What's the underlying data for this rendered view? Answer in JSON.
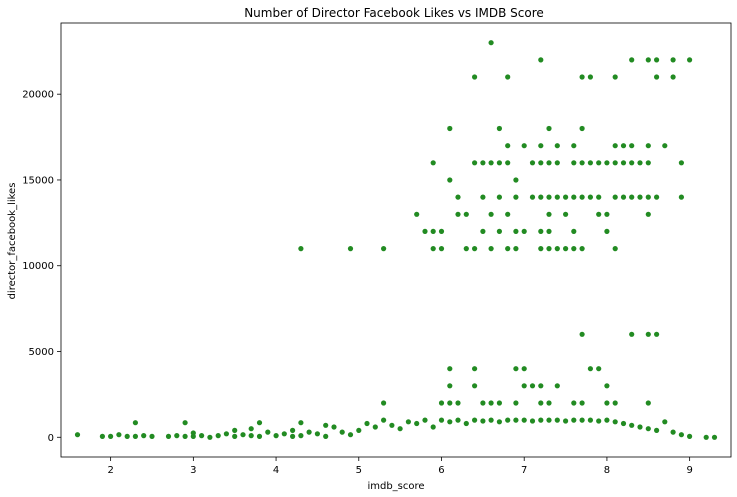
{
  "chart_data": {
    "type": "scatter",
    "title": "Number of Director Facebook Likes vs IMDB Score",
    "xlabel": "imdb_score",
    "ylabel": "director_facebook_likes",
    "xlim": [
      1.4,
      9.5
    ],
    "ylim": [
      -1150,
      24150
    ],
    "xticks": [
      2,
      3,
      4,
      5,
      6,
      7,
      8,
      9
    ],
    "yticks": [
      0,
      5000,
      10000,
      15000,
      20000
    ],
    "grid": false,
    "legend": "none",
    "color": "#228B22",
    "points": [
      [
        1.6,
        150
      ],
      [
        1.9,
        50
      ],
      [
        2.0,
        50
      ],
      [
        2.1,
        150
      ],
      [
        2.2,
        50
      ],
      [
        2.3,
        850
      ],
      [
        2.3,
        50
      ],
      [
        2.4,
        100
      ],
      [
        2.5,
        50
      ],
      [
        2.7,
        50
      ],
      [
        2.8,
        100
      ],
      [
        2.9,
        850
      ],
      [
        2.9,
        50
      ],
      [
        3.0,
        250
      ],
      [
        3.0,
        50
      ],
      [
        3.1,
        100
      ],
      [
        3.2,
        0
      ],
      [
        3.3,
        100
      ],
      [
        3.4,
        200
      ],
      [
        3.5,
        400
      ],
      [
        3.5,
        50
      ],
      [
        3.6,
        150
      ],
      [
        3.7,
        500
      ],
      [
        3.7,
        100
      ],
      [
        3.8,
        850
      ],
      [
        3.8,
        50
      ],
      [
        3.9,
        300
      ],
      [
        4.0,
        100
      ],
      [
        4.1,
        200
      ],
      [
        4.2,
        400
      ],
      [
        4.2,
        50
      ],
      [
        4.3,
        850
      ],
      [
        4.3,
        100
      ],
      [
        4.4,
        300
      ],
      [
        4.5,
        200
      ],
      [
        4.6,
        700
      ],
      [
        4.6,
        50
      ],
      [
        4.7,
        600
      ],
      [
        4.8,
        300
      ],
      [
        4.9,
        150
      ],
      [
        5.0,
        400
      ],
      [
        5.1,
        800
      ],
      [
        5.2,
        600
      ],
      [
        5.3,
        1000
      ],
      [
        5.4,
        700
      ],
      [
        5.5,
        500
      ],
      [
        5.6,
        900
      ],
      [
        5.7,
        800
      ],
      [
        5.8,
        1000
      ],
      [
        5.9,
        600
      ],
      [
        6.0,
        1000
      ],
      [
        6.1,
        900
      ],
      [
        6.2,
        1000
      ],
      [
        6.3,
        800
      ],
      [
        6.4,
        1000
      ],
      [
        6.5,
        950
      ],
      [
        6.6,
        1000
      ],
      [
        6.7,
        900
      ],
      [
        6.8,
        1000
      ],
      [
        6.9,
        1000
      ],
      [
        7.0,
        1000
      ],
      [
        7.1,
        950
      ],
      [
        7.2,
        1000
      ],
      [
        7.3,
        1000
      ],
      [
        7.4,
        1000
      ],
      [
        7.5,
        950
      ],
      [
        7.6,
        1000
      ],
      [
        7.7,
        1000
      ],
      [
        7.8,
        1000
      ],
      [
        7.9,
        950
      ],
      [
        8.0,
        1000
      ],
      [
        8.1,
        900
      ],
      [
        8.2,
        800
      ],
      [
        8.3,
        700
      ],
      [
        8.4,
        600
      ],
      [
        8.5,
        500
      ],
      [
        8.6,
        400
      ],
      [
        8.7,
        900
      ],
      [
        8.8,
        300
      ],
      [
        8.9,
        150
      ],
      [
        9.0,
        50
      ],
      [
        9.2,
        0
      ],
      [
        9.3,
        0
      ],
      [
        5.3,
        2000
      ],
      [
        6.0,
        2000
      ],
      [
        6.1,
        2000
      ],
      [
        6.2,
        2000
      ],
      [
        6.5,
        2000
      ],
      [
        6.6,
        2000
      ],
      [
        6.7,
        2000
      ],
      [
        6.9,
        2000
      ],
      [
        7.2,
        2000
      ],
      [
        7.3,
        2000
      ],
      [
        7.6,
        2000
      ],
      [
        7.7,
        2000
      ],
      [
        8.0,
        2000
      ],
      [
        8.1,
        2000
      ],
      [
        8.5,
        2000
      ],
      [
        6.1,
        3000
      ],
      [
        6.4,
        3000
      ],
      [
        7.0,
        3000
      ],
      [
        7.1,
        3000
      ],
      [
        7.2,
        3000
      ],
      [
        8.0,
        3000
      ],
      [
        7.4,
        3000
      ],
      [
        6.1,
        4000
      ],
      [
        6.4,
        4000
      ],
      [
        6.9,
        4000
      ],
      [
        7.0,
        4000
      ],
      [
        7.8,
        4000
      ],
      [
        7.9,
        4000
      ],
      [
        7.7,
        6000
      ],
      [
        8.3,
        6000
      ],
      [
        8.5,
        6000
      ],
      [
        8.6,
        6000
      ],
      [
        4.3,
        11000
      ],
      [
        4.9,
        11000
      ],
      [
        5.3,
        11000
      ],
      [
        5.9,
        11000
      ],
      [
        6.0,
        11000
      ],
      [
        6.3,
        11000
      ],
      [
        6.4,
        11000
      ],
      [
        6.6,
        11000
      ],
      [
        6.8,
        11000
      ],
      [
        6.9,
        11000
      ],
      [
        7.2,
        11000
      ],
      [
        7.3,
        11000
      ],
      [
        7.4,
        11000
      ],
      [
        7.5,
        11000
      ],
      [
        7.6,
        11000
      ],
      [
        7.7,
        11000
      ],
      [
        8.1,
        11000
      ],
      [
        5.8,
        12000
      ],
      [
        5.9,
        12000
      ],
      [
        6.0,
        12000
      ],
      [
        6.5,
        12000
      ],
      [
        6.7,
        12000
      ],
      [
        6.9,
        12000
      ],
      [
        7.0,
        12000
      ],
      [
        7.2,
        12000
      ],
      [
        7.3,
        12000
      ],
      [
        7.6,
        12000
      ],
      [
        8.0,
        12000
      ],
      [
        5.7,
        13000
      ],
      [
        6.2,
        13000
      ],
      [
        6.3,
        13000
      ],
      [
        6.6,
        13000
      ],
      [
        6.8,
        13000
      ],
      [
        7.3,
        13000
      ],
      [
        7.5,
        13000
      ],
      [
        7.9,
        13000
      ],
      [
        8.0,
        13000
      ],
      [
        8.5,
        13000
      ],
      [
        6.2,
        14000
      ],
      [
        6.5,
        14000
      ],
      [
        6.7,
        14000
      ],
      [
        6.9,
        14000
      ],
      [
        7.1,
        14000
      ],
      [
        7.2,
        14000
      ],
      [
        7.3,
        14000
      ],
      [
        7.4,
        14000
      ],
      [
        7.5,
        14000
      ],
      [
        7.6,
        14000
      ],
      [
        7.7,
        14000
      ],
      [
        7.8,
        14000
      ],
      [
        7.9,
        14000
      ],
      [
        8.1,
        14000
      ],
      [
        8.2,
        14000
      ],
      [
        8.3,
        14000
      ],
      [
        8.4,
        14000
      ],
      [
        8.5,
        14000
      ],
      [
        8.6,
        14000
      ],
      [
        8.9,
        14000
      ],
      [
        6.1,
        15000
      ],
      [
        6.9,
        15000
      ],
      [
        5.9,
        16000
      ],
      [
        6.4,
        16000
      ],
      [
        6.5,
        16000
      ],
      [
        6.6,
        16000
      ],
      [
        6.7,
        16000
      ],
      [
        6.8,
        16000
      ],
      [
        7.1,
        16000
      ],
      [
        7.2,
        16000
      ],
      [
        7.3,
        16000
      ],
      [
        7.4,
        16000
      ],
      [
        7.6,
        16000
      ],
      [
        7.7,
        16000
      ],
      [
        7.8,
        16000
      ],
      [
        7.9,
        16000
      ],
      [
        8.0,
        16000
      ],
      [
        8.1,
        16000
      ],
      [
        8.2,
        16000
      ],
      [
        8.3,
        16000
      ],
      [
        8.4,
        16000
      ],
      [
        8.5,
        16000
      ],
      [
        8.9,
        16000
      ],
      [
        6.8,
        17000
      ],
      [
        7.0,
        17000
      ],
      [
        7.2,
        17000
      ],
      [
        7.4,
        17000
      ],
      [
        7.6,
        17000
      ],
      [
        8.1,
        17000
      ],
      [
        8.2,
        17000
      ],
      [
        8.3,
        17000
      ],
      [
        8.5,
        17000
      ],
      [
        8.7,
        17000
      ],
      [
        6.1,
        18000
      ],
      [
        6.7,
        18000
      ],
      [
        7.3,
        18000
      ],
      [
        7.7,
        18000
      ],
      [
        6.4,
        21000
      ],
      [
        6.8,
        21000
      ],
      [
        7.7,
        21000
      ],
      [
        7.8,
        21000
      ],
      [
        8.1,
        21000
      ],
      [
        8.6,
        21000
      ],
      [
        8.8,
        21000
      ],
      [
        7.2,
        22000
      ],
      [
        8.3,
        22000
      ],
      [
        8.5,
        22000
      ],
      [
        8.6,
        22000
      ],
      [
        8.8,
        22000
      ],
      [
        9.0,
        22000
      ],
      [
        6.6,
        23000
      ]
    ]
  }
}
